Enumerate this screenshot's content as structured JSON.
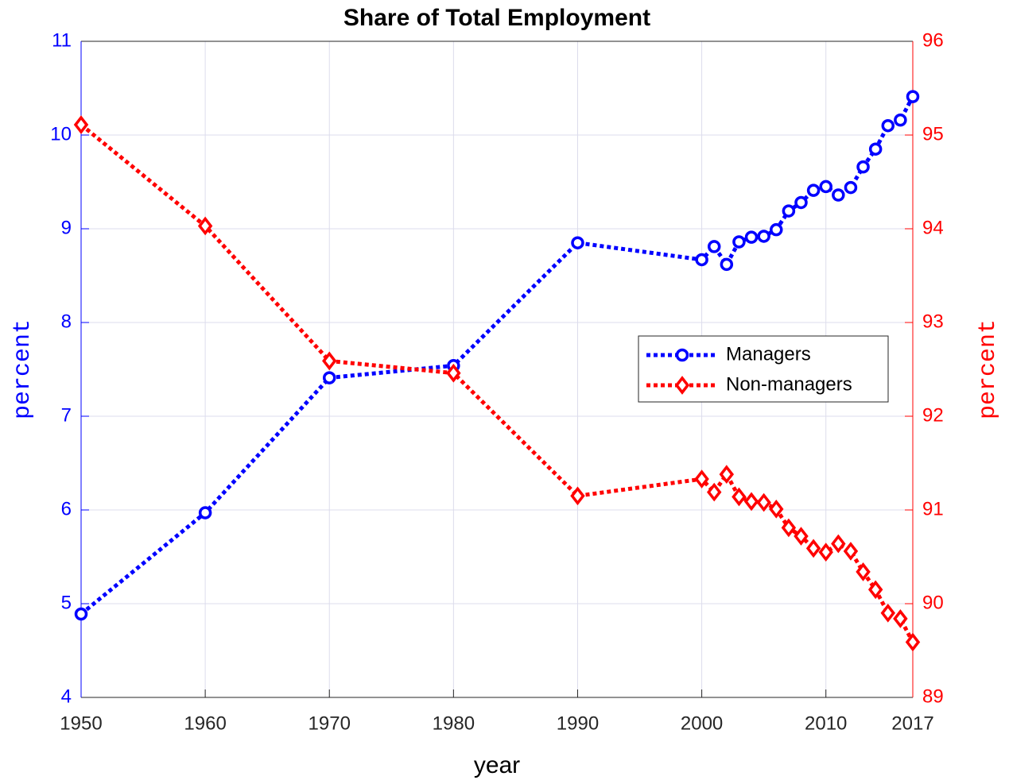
{
  "chart_data": {
    "type": "line",
    "title": "Share of Total Employment",
    "xlabel": "year",
    "ylabel": "percent",
    "y2label": "percent",
    "x": [
      1950,
      1960,
      1970,
      1980,
      1990,
      2000,
      2001,
      2002,
      2003,
      2004,
      2005,
      2006,
      2007,
      2008,
      2009,
      2010,
      2011,
      2012,
      2013,
      2014,
      2015,
      2016,
      2017
    ],
    "series": [
      {
        "name": "Managers",
        "color": "#0000ff",
        "marker": "circle",
        "axis": "y",
        "values": [
          4.89,
          5.97,
          7.41,
          7.54,
          8.85,
          8.67,
          8.81,
          8.62,
          8.86,
          8.91,
          8.92,
          8.99,
          9.19,
          9.28,
          9.41,
          9.45,
          9.36,
          9.44,
          9.66,
          9.85,
          10.1,
          10.16,
          10.41
        ]
      },
      {
        "name": "Non-managers",
        "color": "#ff0000",
        "marker": "diamond",
        "axis": "y2",
        "values": [
          95.11,
          94.03,
          92.59,
          92.46,
          91.15,
          91.33,
          91.19,
          91.38,
          91.14,
          91.09,
          91.08,
          91.01,
          90.81,
          90.72,
          90.59,
          90.55,
          90.64,
          90.56,
          90.34,
          90.15,
          89.9,
          89.84,
          89.59
        ]
      }
    ],
    "xlim": [
      1950,
      2017
    ],
    "xticks": [
      1950,
      1960,
      1970,
      1980,
      1990,
      2000,
      2010,
      2017
    ],
    "ylim": [
      4,
      11
    ],
    "yticks": [
      4,
      5,
      6,
      7,
      8,
      9,
      10,
      11
    ],
    "y2lim": [
      89,
      96
    ],
    "y2ticks": [
      89,
      90,
      91,
      92,
      93,
      94,
      95,
      96
    ],
    "grid": true,
    "legend": "east"
  }
}
